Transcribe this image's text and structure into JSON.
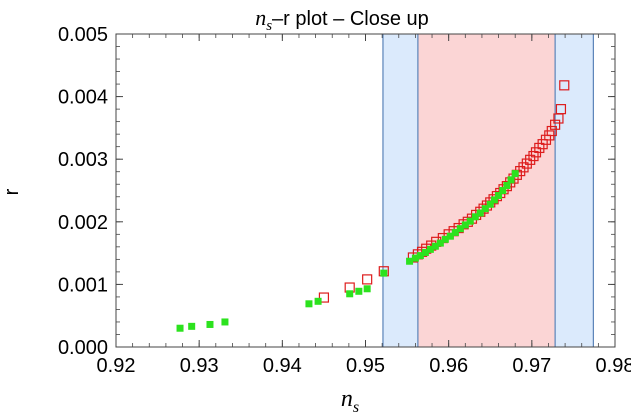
{
  "chart_data": {
    "type": "scatter",
    "title": {
      "prefix": "n",
      "subscript": "s",
      "suffix": "–r plot – Close up"
    },
    "xlabel": {
      "main": "n",
      "subscript": "s"
    },
    "ylabel": "r",
    "xlim": [
      0.92,
      0.98
    ],
    "ylim": [
      0,
      0.005
    ],
    "xticks": [
      {
        "value": 0.92,
        "label": "0.92"
      },
      {
        "value": 0.93,
        "label": "0.93"
      },
      {
        "value": 0.94,
        "label": "0.94"
      },
      {
        "value": 0.95,
        "label": "0.95"
      },
      {
        "value": 0.96,
        "label": "0.96"
      },
      {
        "value": 0.97,
        "label": "0.97"
      },
      {
        "value": 0.98,
        "label": "0.98"
      }
    ],
    "yticks": [
      {
        "value": 0.0,
        "label": "0.000"
      },
      {
        "value": 0.001,
        "label": "0.001"
      },
      {
        "value": 0.002,
        "label": "0.002"
      },
      {
        "value": 0.003,
        "label": "0.003"
      },
      {
        "value": 0.004,
        "label": "0.004"
      },
      {
        "value": 0.005,
        "label": "0.005"
      }
    ],
    "bands": [
      {
        "x0": 0.9521,
        "x1": 0.9774,
        "color": "#dbeafc",
        "edge": "#5b83b8"
      },
      {
        "x0": 0.9563,
        "x1": 0.9728,
        "color": "#fbd5d5",
        "edge": "#5b83b8"
      }
    ],
    "series": [
      {
        "marker": "open-square",
        "color": "#dd1c1c",
        "x": [
          0.945,
          0.9481,
          0.9502,
          0.9522,
          0.9557,
          0.9563,
          0.9568,
          0.9573,
          0.9579,
          0.9585,
          0.9593,
          0.96,
          0.9606,
          0.9612,
          0.9618,
          0.9623,
          0.9628,
          0.9633,
          0.9638,
          0.9642,
          0.9646,
          0.965,
          0.9654,
          0.9658,
          0.9662,
          0.9666,
          0.967,
          0.9674,
          0.9678,
          0.9682,
          0.9686,
          0.969,
          0.9694,
          0.9698,
          0.9702,
          0.9705,
          0.9709,
          0.9713,
          0.9717,
          0.9721,
          0.9724,
          0.9728,
          0.9732,
          0.9735,
          0.9739
        ],
        "y": [
          0.00079,
          0.00095,
          0.00108,
          0.00121,
          0.00143,
          0.00148,
          0.00152,
          0.00157,
          0.00162,
          0.00168,
          0.00174,
          0.0018,
          0.00185,
          0.0019,
          0.00196,
          0.002,
          0.00205,
          0.00211,
          0.00216,
          0.00221,
          0.00226,
          0.00231,
          0.00236,
          0.00241,
          0.00246,
          0.00252,
          0.00257,
          0.00263,
          0.00269,
          0.00275,
          0.00281,
          0.00287,
          0.00293,
          0.00299,
          0.00305,
          0.00311,
          0.00318,
          0.00324,
          0.00331,
          0.00338,
          0.00345,
          0.00355,
          0.00365,
          0.0038,
          0.00418
        ]
      },
      {
        "marker": "filled-square",
        "color": "#2ce21e",
        "x": [
          0.9277,
          0.9291,
          0.9313,
          0.9331,
          0.9432,
          0.9443,
          0.9481,
          0.9492,
          0.9502,
          0.9522,
          0.9553,
          0.956,
          0.9566,
          0.9572,
          0.9578,
          0.9584,
          0.959,
          0.9596,
          0.9602,
          0.9608,
          0.9614,
          0.962,
          0.9626,
          0.9632,
          0.9638,
          0.9644,
          0.965,
          0.9655,
          0.966,
          0.9665,
          0.967,
          0.9675,
          0.968
        ],
        "y": [
          0.0003,
          0.00033,
          0.00036,
          0.0004,
          0.00069,
          0.00073,
          0.00085,
          0.00089,
          0.00093,
          0.00118,
          0.00137,
          0.00142,
          0.00146,
          0.00151,
          0.00156,
          0.00161,
          0.00166,
          0.00172,
          0.00177,
          0.00183,
          0.00189,
          0.00195,
          0.00201,
          0.00208,
          0.00214,
          0.00221,
          0.00228,
          0.00235,
          0.00242,
          0.0025,
          0.00258,
          0.00267,
          0.00277
        ]
      }
    ]
  }
}
